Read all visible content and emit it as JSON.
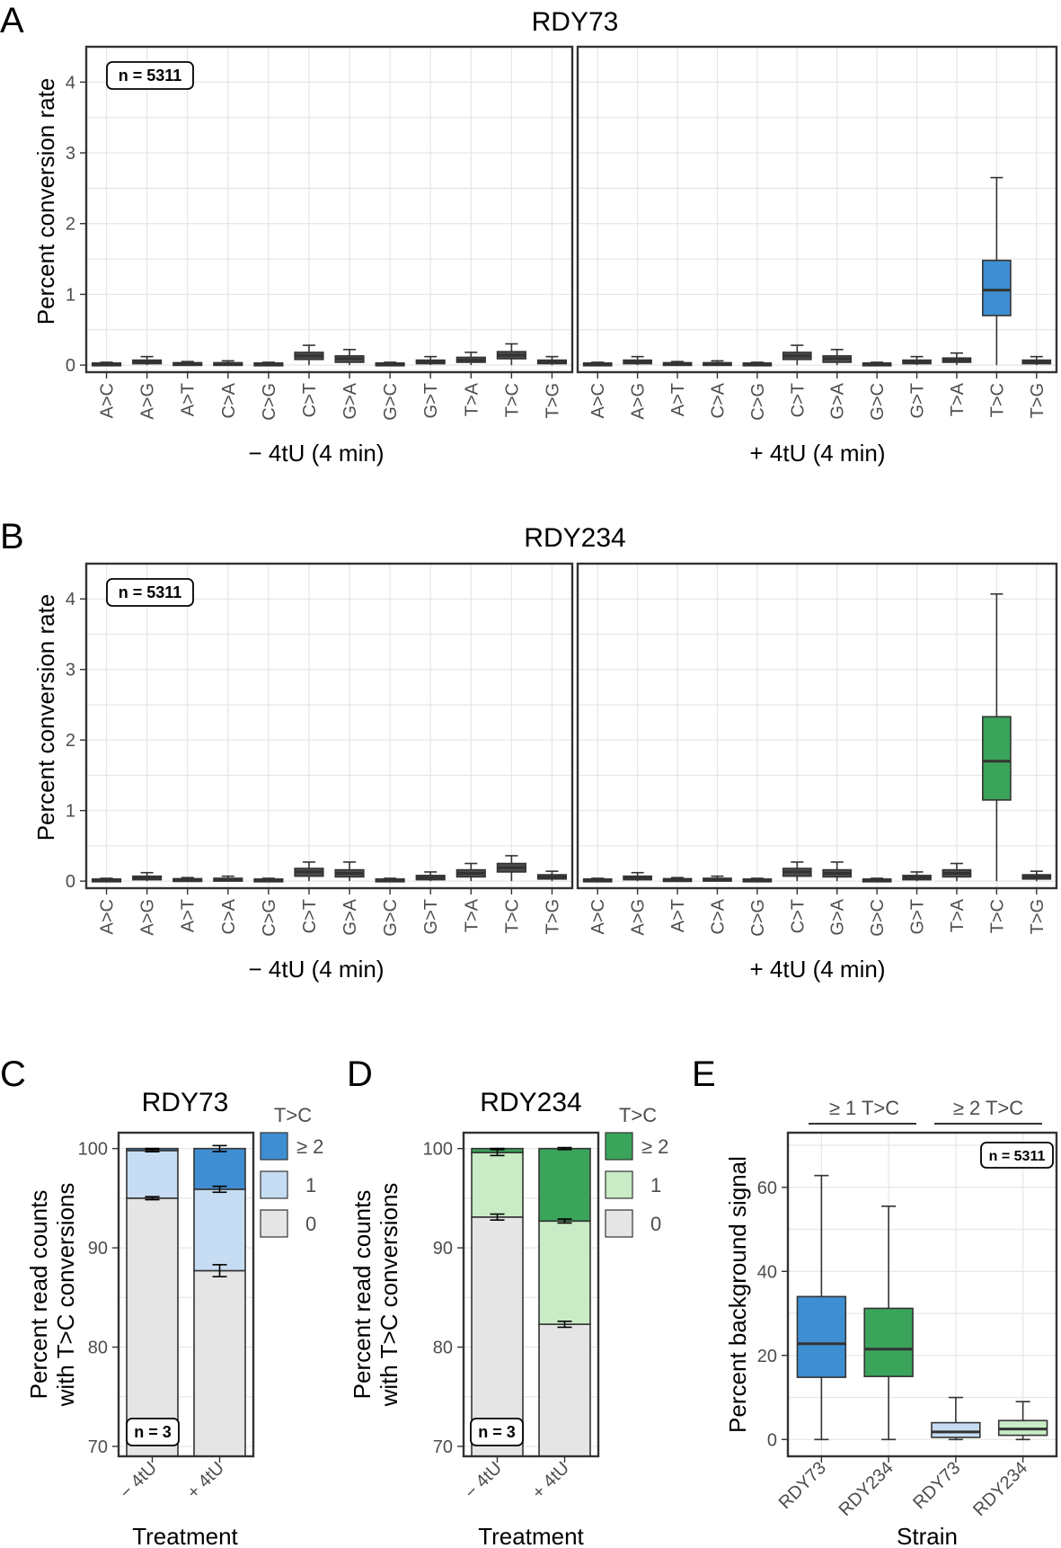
{
  "panel_labels": {
    "a": "A",
    "b": "B",
    "c": "C",
    "d": "D",
    "e": "E"
  },
  "colors": {
    "rdy73": "#3f8ed1",
    "rdy73_light": "#c6dcf2",
    "rdy234": "#3aa45b",
    "rdy234_light": "#c9ebc5",
    "zero": "#e5e5e5",
    "neutral_box": "#4d4d4d"
  },
  "chart_data": [
    {
      "id": "A",
      "type": "box",
      "title": "RDY73",
      "ylabel": "Percent conversion rate",
      "ylim": [
        -0.1,
        4.5
      ],
      "yticks": [
        0,
        1,
        2,
        3,
        4
      ],
      "badge": "n = 5311",
      "categories": [
        "A>C",
        "A>G",
        "A>T",
        "C>A",
        "C>G",
        "C>T",
        "G>A",
        "G>C",
        "G>T",
        "T>A",
        "T>C",
        "T>G"
      ],
      "highlight": "T>C",
      "facets": [
        {
          "label": "− 4tU (4 min)",
          "boxes": [
            {
              "lo": 0,
              "q1": 0.0,
              "med": 0.01,
              "q3": 0.02,
              "hi": 0.04
            },
            {
              "lo": 0,
              "q1": 0.02,
              "med": 0.04,
              "q3": 0.07,
              "hi": 0.12
            },
            {
              "lo": 0,
              "q1": 0.0,
              "med": 0.02,
              "q3": 0.03,
              "hi": 0.05
            },
            {
              "lo": 0,
              "q1": 0.0,
              "med": 0.02,
              "q3": 0.03,
              "hi": 0.06
            },
            {
              "lo": 0,
              "q1": 0.0,
              "med": 0.01,
              "q3": 0.02,
              "hi": 0.04
            },
            {
              "lo": 0,
              "q1": 0.08,
              "med": 0.13,
              "q3": 0.18,
              "hi": 0.28
            },
            {
              "lo": 0,
              "q1": 0.04,
              "med": 0.09,
              "q3": 0.13,
              "hi": 0.22
            },
            {
              "lo": 0,
              "q1": 0.0,
              "med": 0.01,
              "q3": 0.02,
              "hi": 0.04
            },
            {
              "lo": 0,
              "q1": 0.02,
              "med": 0.04,
              "q3": 0.07,
              "hi": 0.12
            },
            {
              "lo": 0,
              "q1": 0.04,
              "med": 0.07,
              "q3": 0.11,
              "hi": 0.18
            },
            {
              "lo": 0,
              "q1": 0.09,
              "med": 0.14,
              "q3": 0.19,
              "hi": 0.3
            },
            {
              "lo": 0,
              "q1": 0.02,
              "med": 0.04,
              "q3": 0.07,
              "hi": 0.12
            }
          ]
        },
        {
          "label": "+ 4tU (4 min)",
          "boxes": [
            {
              "lo": 0,
              "q1": 0.0,
              "med": 0.01,
              "q3": 0.02,
              "hi": 0.04
            },
            {
              "lo": 0,
              "q1": 0.02,
              "med": 0.04,
              "q3": 0.07,
              "hi": 0.12
            },
            {
              "lo": 0,
              "q1": 0.0,
              "med": 0.02,
              "q3": 0.03,
              "hi": 0.05
            },
            {
              "lo": 0,
              "q1": 0.0,
              "med": 0.02,
              "q3": 0.03,
              "hi": 0.06
            },
            {
              "lo": 0,
              "q1": 0.0,
              "med": 0.01,
              "q3": 0.02,
              "hi": 0.04
            },
            {
              "lo": 0,
              "q1": 0.08,
              "med": 0.13,
              "q3": 0.18,
              "hi": 0.28
            },
            {
              "lo": 0,
              "q1": 0.04,
              "med": 0.09,
              "q3": 0.13,
              "hi": 0.22
            },
            {
              "lo": 0,
              "q1": 0.0,
              "med": 0.01,
              "q3": 0.02,
              "hi": 0.04
            },
            {
              "lo": 0,
              "q1": 0.02,
              "med": 0.04,
              "q3": 0.07,
              "hi": 0.12
            },
            {
              "lo": 0,
              "q1": 0.04,
              "med": 0.07,
              "q3": 0.1,
              "hi": 0.17
            },
            {
              "lo": 0,
              "q1": 0.7,
              "med": 1.06,
              "q3": 1.48,
              "hi": 2.65
            },
            {
              "lo": 0,
              "q1": 0.02,
              "med": 0.04,
              "q3": 0.07,
              "hi": 0.12
            }
          ]
        }
      ]
    },
    {
      "id": "B",
      "type": "box",
      "title": "RDY234",
      "ylabel": "Percent conversion rate",
      "ylim": [
        -0.1,
        4.5
      ],
      "yticks": [
        0,
        1,
        2,
        3,
        4
      ],
      "badge": "n = 5311",
      "categories": [
        "A>C",
        "A>G",
        "A>T",
        "C>A",
        "C>G",
        "C>T",
        "G>A",
        "G>C",
        "G>T",
        "T>A",
        "T>C",
        "T>G"
      ],
      "highlight": "T>C",
      "facets": [
        {
          "label": "− 4tU (4 min)",
          "boxes": [
            {
              "lo": 0,
              "q1": 0.0,
              "med": 0.01,
              "q3": 0.02,
              "hi": 0.04
            },
            {
              "lo": 0,
              "q1": 0.02,
              "med": 0.04,
              "q3": 0.07,
              "hi": 0.12
            },
            {
              "lo": 0,
              "q1": 0.0,
              "med": 0.02,
              "q3": 0.03,
              "hi": 0.05
            },
            {
              "lo": 0,
              "q1": 0.0,
              "med": 0.02,
              "q3": 0.04,
              "hi": 0.07
            },
            {
              "lo": 0,
              "q1": 0.0,
              "med": 0.01,
              "q3": 0.02,
              "hi": 0.04
            },
            {
              "lo": 0,
              "q1": 0.07,
              "med": 0.13,
              "q3": 0.18,
              "hi": 0.27
            },
            {
              "lo": 0,
              "q1": 0.06,
              "med": 0.11,
              "q3": 0.16,
              "hi": 0.27
            },
            {
              "lo": 0,
              "q1": 0.0,
              "med": 0.01,
              "q3": 0.02,
              "hi": 0.04
            },
            {
              "lo": 0,
              "q1": 0.02,
              "med": 0.05,
              "q3": 0.08,
              "hi": 0.13
            },
            {
              "lo": 0,
              "q1": 0.06,
              "med": 0.11,
              "q3": 0.16,
              "hi": 0.25
            },
            {
              "lo": 0,
              "q1": 0.13,
              "med": 0.19,
              "q3": 0.25,
              "hi": 0.36
            },
            {
              "lo": 0,
              "q1": 0.03,
              "med": 0.06,
              "q3": 0.09,
              "hi": 0.14
            }
          ]
        },
        {
          "label": "+ 4tU (4 min)",
          "boxes": [
            {
              "lo": 0,
              "q1": 0.0,
              "med": 0.01,
              "q3": 0.02,
              "hi": 0.04
            },
            {
              "lo": 0,
              "q1": 0.02,
              "med": 0.04,
              "q3": 0.07,
              "hi": 0.12
            },
            {
              "lo": 0,
              "q1": 0.0,
              "med": 0.02,
              "q3": 0.03,
              "hi": 0.05
            },
            {
              "lo": 0,
              "q1": 0.0,
              "med": 0.02,
              "q3": 0.04,
              "hi": 0.07
            },
            {
              "lo": 0,
              "q1": 0.0,
              "med": 0.01,
              "q3": 0.02,
              "hi": 0.04
            },
            {
              "lo": 0,
              "q1": 0.07,
              "med": 0.13,
              "q3": 0.18,
              "hi": 0.27
            },
            {
              "lo": 0,
              "q1": 0.06,
              "med": 0.11,
              "q3": 0.16,
              "hi": 0.27
            },
            {
              "lo": 0,
              "q1": 0.0,
              "med": 0.01,
              "q3": 0.02,
              "hi": 0.04
            },
            {
              "lo": 0,
              "q1": 0.02,
              "med": 0.05,
              "q3": 0.08,
              "hi": 0.13
            },
            {
              "lo": 0,
              "q1": 0.06,
              "med": 0.11,
              "q3": 0.16,
              "hi": 0.25
            },
            {
              "lo": 0,
              "q1": 1.15,
              "med": 1.7,
              "q3": 2.33,
              "hi": 4.07
            },
            {
              "lo": 0,
              "q1": 0.03,
              "med": 0.06,
              "q3": 0.09,
              "hi": 0.14
            }
          ]
        }
      ]
    },
    {
      "id": "C",
      "type": "stacked_bar",
      "title": "RDY73",
      "ylabel_line1": "Percent read counts",
      "ylabel_line2": "with T>C conversions",
      "xlabel": "Treatment",
      "ylim": [
        69,
        101.6
      ],
      "yticks": [
        70,
        80,
        90,
        100
      ],
      "badge": "n = 3",
      "categories": [
        "− 4tU",
        "+ 4tU"
      ],
      "legend_title": "T>C",
      "legend": [
        "≥ 2",
        "1",
        "0"
      ],
      "stack_tops": {
        "zero": [
          95.0,
          87.7
        ],
        "one": [
          99.8,
          95.9
        ],
        "two": [
          100.0,
          100.0
        ]
      },
      "errors": {
        "zero": [
          0.15,
          0.6
        ],
        "one": [
          0.12,
          0.3
        ],
        "two": [
          0.0,
          0.3
        ]
      }
    },
    {
      "id": "D",
      "type": "stacked_bar",
      "title": "RDY234",
      "ylabel_line1": "Percent read counts",
      "ylabel_line2": "with T>C conversions",
      "xlabel": "Treatment",
      "ylim": [
        69,
        101.6
      ],
      "yticks": [
        70,
        80,
        90,
        100
      ],
      "badge": "n = 3",
      "categories": [
        "− 4tU",
        "+ 4tU"
      ],
      "legend_title": "T>C",
      "legend": [
        "≥ 2",
        "1",
        "0"
      ],
      "stack_tops": {
        "zero": [
          93.1,
          82.3
        ],
        "one": [
          99.6,
          92.7
        ],
        "two": [
          100.0,
          100.0
        ]
      },
      "errors": {
        "zero": [
          0.3,
          0.3
        ],
        "one": [
          0.3,
          0.2
        ],
        "two": [
          0.0,
          0.1
        ]
      }
    },
    {
      "id": "E",
      "type": "box",
      "ylabel": "Percent background signal",
      "xlabel": "Strain",
      "ylim": [
        -4,
        73
      ],
      "yticks": [
        0,
        20,
        40,
        60
      ],
      "badge": "n = 5311",
      "groups": [
        "≥ 1 T>C",
        "≥ 2 T>C"
      ],
      "categories": [
        "RDY73",
        "RDY234",
        "RDY73",
        "RDY234"
      ],
      "boxes": [
        {
          "lo": 0,
          "q1": 14.8,
          "med": 22.8,
          "q3": 34.0,
          "hi": 62.8
        },
        {
          "lo": 0,
          "q1": 15.0,
          "med": 21.5,
          "q3": 31.2,
          "hi": 55.5
        },
        {
          "lo": 0,
          "q1": 0.5,
          "med": 1.8,
          "q3": 4.0,
          "hi": 10.0
        },
        {
          "lo": 0,
          "q1": 1.0,
          "med": 2.5,
          "q3": 4.5,
          "hi": 9.0
        }
      ]
    }
  ]
}
